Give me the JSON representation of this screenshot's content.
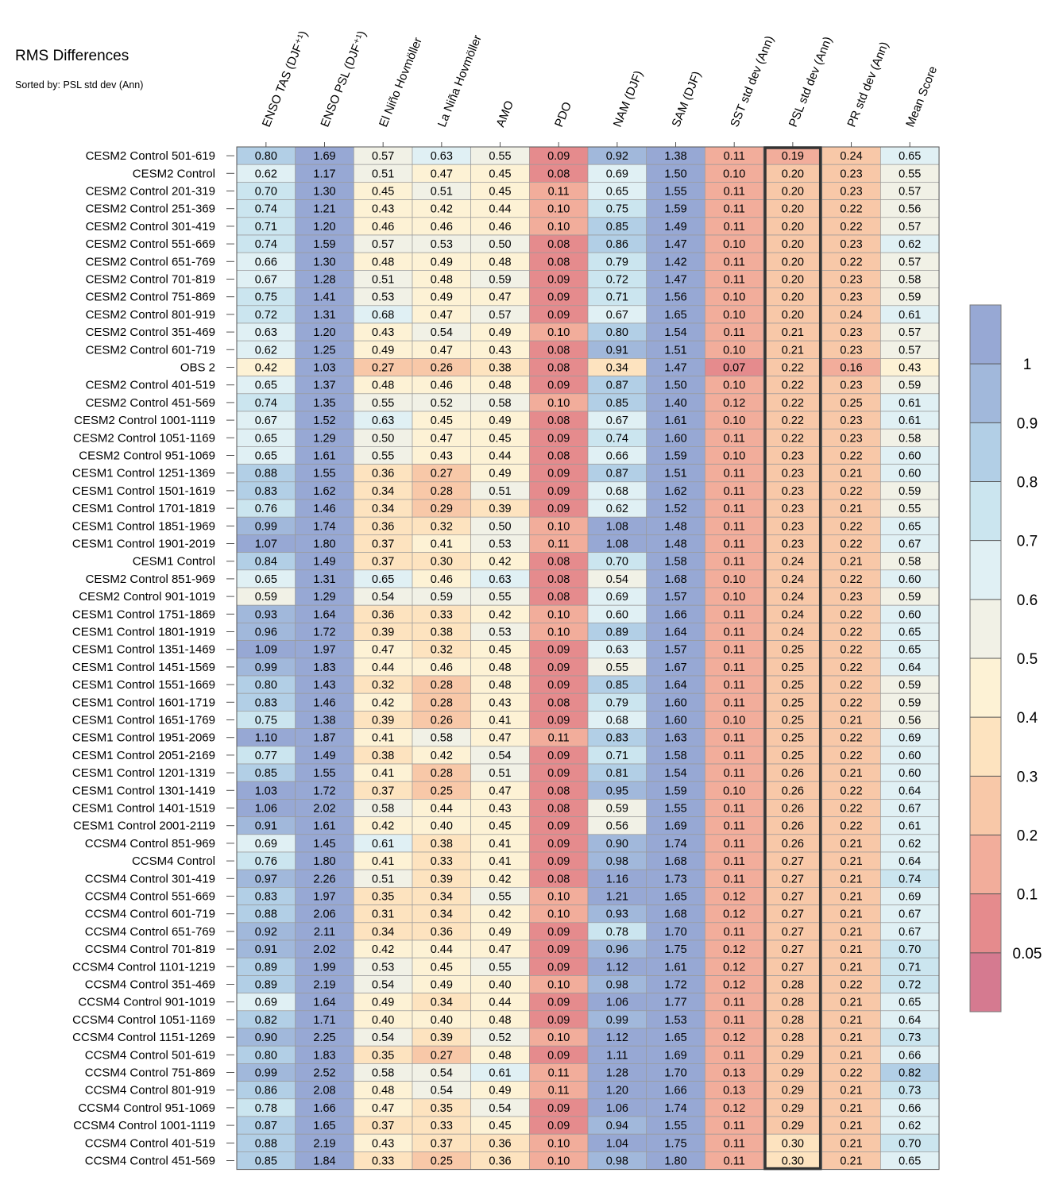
{
  "chart_data": {
    "type": "heatmap",
    "title": "RMS Differences",
    "subtitle": "Sorted by: PSL std dev (Ann)",
    "highlighted_column": "PSL std dev (Ann)",
    "columns": [
      "ENSO TAS (DJF⁺¹)",
      "ENSO PSL (DJF⁺¹)",
      "El Niño Hovmöller",
      "La Niña Hovmöller",
      "AMO",
      "PDO",
      "NAM (DJF)",
      "SAM (DJF)",
      "SST std dev (Ann)",
      "PSL std dev (Ann)",
      "PR std dev (Ann)",
      "Mean Score"
    ],
    "rows": [
      "CESM2 Control 501-619",
      "CESM2 Control",
      "CESM2 Control 201-319",
      "CESM2 Control 251-369",
      "CESM2 Control 301-419",
      "CESM2 Control 551-669",
      "CESM2 Control 651-769",
      "CESM2 Control 701-819",
      "CESM2 Control 751-869",
      "CESM2 Control 801-919",
      "CESM2 Control 351-469",
      "CESM2 Control 601-719",
      "OBS 2",
      "CESM2 Control 401-519",
      "CESM2 Control 451-569",
      "CESM2 Control 1001-1119",
      "CESM2 Control 1051-1169",
      "CESM2 Control 951-1069",
      "CESM1 Control 1251-1369",
      "CESM1 Control 1501-1619",
      "CESM1 Control 1701-1819",
      "CESM1 Control 1851-1969",
      "CESM1 Control 1901-2019",
      "CESM1 Control",
      "CESM2 Control 851-969",
      "CESM2 Control 901-1019",
      "CESM1 Control 1751-1869",
      "CESM1 Control 1801-1919",
      "CESM1 Control 1351-1469",
      "CESM1 Control 1451-1569",
      "CESM1 Control 1551-1669",
      "CESM1 Control 1601-1719",
      "CESM1 Control 1651-1769",
      "CESM1 Control 1951-2069",
      "CESM1 Control 2051-2169",
      "CESM1 Control 1201-1319",
      "CESM1 Control 1301-1419",
      "CESM1 Control 1401-1519",
      "CESM1 Control 2001-2119",
      "CCSM4 Control 851-969",
      "CCSM4 Control",
      "CCSM4 Control 301-419",
      "CCSM4 Control 551-669",
      "CCSM4 Control 601-719",
      "CCSM4 Control 651-769",
      "CCSM4 Control 701-819",
      "CCSM4 Control 1101-1219",
      "CCSM4 Control 351-469",
      "CCSM4 Control 901-1019",
      "CCSM4 Control 1051-1169",
      "CCSM4 Control 1151-1269",
      "CCSM4 Control 501-619",
      "CCSM4 Control 751-869",
      "CCSM4 Control 801-919",
      "CCSM4 Control 951-1069",
      "CCSM4 Control 1001-1119",
      "CCSM4 Control 401-519",
      "CCSM4 Control 451-569"
    ],
    "values": [
      [
        "0.80",
        "1.69",
        "0.57",
        "0.63",
        "0.55",
        "0.09",
        "0.92",
        "1.38",
        "0.11",
        "0.19",
        "0.24",
        "0.65"
      ],
      [
        "0.62",
        "1.17",
        "0.51",
        "0.47",
        "0.45",
        "0.08",
        "0.69",
        "1.50",
        "0.10",
        "0.20",
        "0.23",
        "0.55"
      ],
      [
        "0.70",
        "1.30",
        "0.45",
        "0.51",
        "0.45",
        "0.11",
        "0.65",
        "1.55",
        "0.11",
        "0.20",
        "0.23",
        "0.57"
      ],
      [
        "0.74",
        "1.21",
        "0.43",
        "0.42",
        "0.44",
        "0.10",
        "0.75",
        "1.59",
        "0.11",
        "0.20",
        "0.22",
        "0.56"
      ],
      [
        "0.71",
        "1.20",
        "0.46",
        "0.46",
        "0.46",
        "0.10",
        "0.85",
        "1.49",
        "0.11",
        "0.20",
        "0.22",
        "0.57"
      ],
      [
        "0.74",
        "1.59",
        "0.57",
        "0.53",
        "0.50",
        "0.08",
        "0.86",
        "1.47",
        "0.10",
        "0.20",
        "0.23",
        "0.62"
      ],
      [
        "0.66",
        "1.30",
        "0.48",
        "0.49",
        "0.48",
        "0.08",
        "0.79",
        "1.42",
        "0.11",
        "0.20",
        "0.22",
        "0.57"
      ],
      [
        "0.67",
        "1.28",
        "0.51",
        "0.48",
        "0.59",
        "0.09",
        "0.72",
        "1.47",
        "0.11",
        "0.20",
        "0.23",
        "0.58"
      ],
      [
        "0.75",
        "1.41",
        "0.53",
        "0.49",
        "0.47",
        "0.09",
        "0.71",
        "1.56",
        "0.10",
        "0.20",
        "0.23",
        "0.59"
      ],
      [
        "0.72",
        "1.31",
        "0.68",
        "0.47",
        "0.57",
        "0.09",
        "0.67",
        "1.65",
        "0.10",
        "0.20",
        "0.24",
        "0.61"
      ],
      [
        "0.63",
        "1.20",
        "0.43",
        "0.54",
        "0.49",
        "0.10",
        "0.80",
        "1.54",
        "0.11",
        "0.21",
        "0.23",
        "0.57"
      ],
      [
        "0.62",
        "1.25",
        "0.49",
        "0.47",
        "0.43",
        "0.08",
        "0.91",
        "1.51",
        "0.10",
        "0.21",
        "0.23",
        "0.57"
      ],
      [
        "0.42",
        "1.03",
        "0.27",
        "0.26",
        "0.38",
        "0.08",
        "0.34",
        "1.47",
        "0.07",
        "0.22",
        "0.16",
        "0.43"
      ],
      [
        "0.65",
        "1.37",
        "0.48",
        "0.46",
        "0.48",
        "0.09",
        "0.87",
        "1.50",
        "0.10",
        "0.22",
        "0.23",
        "0.59"
      ],
      [
        "0.74",
        "1.35",
        "0.55",
        "0.52",
        "0.58",
        "0.10",
        "0.85",
        "1.40",
        "0.12",
        "0.22",
        "0.25",
        "0.61"
      ],
      [
        "0.67",
        "1.52",
        "0.63",
        "0.45",
        "0.49",
        "0.08",
        "0.67",
        "1.61",
        "0.10",
        "0.22",
        "0.23",
        "0.61"
      ],
      [
        "0.65",
        "1.29",
        "0.50",
        "0.47",
        "0.45",
        "0.09",
        "0.74",
        "1.60",
        "0.11",
        "0.22",
        "0.23",
        "0.58"
      ],
      [
        "0.65",
        "1.61",
        "0.55",
        "0.43",
        "0.44",
        "0.08",
        "0.66",
        "1.59",
        "0.10",
        "0.23",
        "0.22",
        "0.60"
      ],
      [
        "0.88",
        "1.55",
        "0.36",
        "0.27",
        "0.49",
        "0.09",
        "0.87",
        "1.51",
        "0.11",
        "0.23",
        "0.21",
        "0.60"
      ],
      [
        "0.83",
        "1.62",
        "0.34",
        "0.28",
        "0.51",
        "0.09",
        "0.68",
        "1.62",
        "0.11",
        "0.23",
        "0.22",
        "0.59"
      ],
      [
        "0.76",
        "1.46",
        "0.34",
        "0.29",
        "0.39",
        "0.09",
        "0.62",
        "1.52",
        "0.11",
        "0.23",
        "0.21",
        "0.55"
      ],
      [
        "0.99",
        "1.74",
        "0.36",
        "0.32",
        "0.50",
        "0.10",
        "1.08",
        "1.48",
        "0.11",
        "0.23",
        "0.22",
        "0.65"
      ],
      [
        "1.07",
        "1.80",
        "0.37",
        "0.41",
        "0.53",
        "0.11",
        "1.08",
        "1.48",
        "0.11",
        "0.23",
        "0.22",
        "0.67"
      ],
      [
        "0.84",
        "1.49",
        "0.37",
        "0.30",
        "0.42",
        "0.08",
        "0.70",
        "1.58",
        "0.11",
        "0.24",
        "0.21",
        "0.58"
      ],
      [
        "0.65",
        "1.31",
        "0.65",
        "0.46",
        "0.63",
        "0.08",
        "0.54",
        "1.68",
        "0.10",
        "0.24",
        "0.22",
        "0.60"
      ],
      [
        "0.59",
        "1.29",
        "0.54",
        "0.59",
        "0.55",
        "0.08",
        "0.69",
        "1.57",
        "0.10",
        "0.24",
        "0.23",
        "0.59"
      ],
      [
        "0.93",
        "1.64",
        "0.36",
        "0.33",
        "0.42",
        "0.10",
        "0.60",
        "1.66",
        "0.11",
        "0.24",
        "0.22",
        "0.60"
      ],
      [
        "0.96",
        "1.72",
        "0.39",
        "0.38",
        "0.53",
        "0.10",
        "0.89",
        "1.64",
        "0.11",
        "0.24",
        "0.22",
        "0.65"
      ],
      [
        "1.09",
        "1.97",
        "0.47",
        "0.32",
        "0.45",
        "0.09",
        "0.63",
        "1.57",
        "0.11",
        "0.25",
        "0.22",
        "0.65"
      ],
      [
        "0.99",
        "1.83",
        "0.44",
        "0.46",
        "0.48",
        "0.09",
        "0.55",
        "1.67",
        "0.11",
        "0.25",
        "0.22",
        "0.64"
      ],
      [
        "0.80",
        "1.43",
        "0.32",
        "0.28",
        "0.48",
        "0.09",
        "0.85",
        "1.64",
        "0.11",
        "0.25",
        "0.22",
        "0.59"
      ],
      [
        "0.83",
        "1.46",
        "0.42",
        "0.28",
        "0.43",
        "0.08",
        "0.79",
        "1.60",
        "0.11",
        "0.25",
        "0.22",
        "0.59"
      ],
      [
        "0.75",
        "1.38",
        "0.39",
        "0.26",
        "0.41",
        "0.09",
        "0.68",
        "1.60",
        "0.10",
        "0.25",
        "0.21",
        "0.56"
      ],
      [
        "1.10",
        "1.87",
        "0.41",
        "0.58",
        "0.47",
        "0.11",
        "0.83",
        "1.63",
        "0.11",
        "0.25",
        "0.22",
        "0.69"
      ],
      [
        "0.77",
        "1.49",
        "0.38",
        "0.42",
        "0.54",
        "0.09",
        "0.71",
        "1.58",
        "0.11",
        "0.25",
        "0.22",
        "0.60"
      ],
      [
        "0.85",
        "1.55",
        "0.41",
        "0.28",
        "0.51",
        "0.09",
        "0.81",
        "1.54",
        "0.11",
        "0.26",
        "0.21",
        "0.60"
      ],
      [
        "1.03",
        "1.72",
        "0.37",
        "0.25",
        "0.47",
        "0.08",
        "0.95",
        "1.59",
        "0.10",
        "0.26",
        "0.22",
        "0.64"
      ],
      [
        "1.06",
        "2.02",
        "0.58",
        "0.44",
        "0.43",
        "0.08",
        "0.59",
        "1.55",
        "0.11",
        "0.26",
        "0.22",
        "0.67"
      ],
      [
        "0.91",
        "1.61",
        "0.42",
        "0.40",
        "0.45",
        "0.09",
        "0.56",
        "1.69",
        "0.11",
        "0.26",
        "0.22",
        "0.61"
      ],
      [
        "0.69",
        "1.45",
        "0.61",
        "0.38",
        "0.41",
        "0.09",
        "0.90",
        "1.74",
        "0.11",
        "0.26",
        "0.21",
        "0.62"
      ],
      [
        "0.76",
        "1.80",
        "0.41",
        "0.33",
        "0.41",
        "0.09",
        "0.98",
        "1.68",
        "0.11",
        "0.27",
        "0.21",
        "0.64"
      ],
      [
        "0.97",
        "2.26",
        "0.51",
        "0.39",
        "0.42",
        "0.08",
        "1.16",
        "1.73",
        "0.11",
        "0.27",
        "0.21",
        "0.74"
      ],
      [
        "0.83",
        "1.97",
        "0.35",
        "0.34",
        "0.55",
        "0.10",
        "1.21",
        "1.65",
        "0.12",
        "0.27",
        "0.21",
        "0.69"
      ],
      [
        "0.88",
        "2.06",
        "0.31",
        "0.34",
        "0.42",
        "0.10",
        "0.93",
        "1.68",
        "0.12",
        "0.27",
        "0.21",
        "0.67"
      ],
      [
        "0.92",
        "2.11",
        "0.34",
        "0.36",
        "0.49",
        "0.09",
        "0.78",
        "1.70",
        "0.11",
        "0.27",
        "0.21",
        "0.67"
      ],
      [
        "0.91",
        "2.02",
        "0.42",
        "0.44",
        "0.47",
        "0.09",
        "0.96",
        "1.75",
        "0.12",
        "0.27",
        "0.21",
        "0.70"
      ],
      [
        "0.89",
        "1.99",
        "0.53",
        "0.45",
        "0.55",
        "0.09",
        "1.12",
        "1.61",
        "0.12",
        "0.27",
        "0.21",
        "0.71"
      ],
      [
        "0.89",
        "2.19",
        "0.54",
        "0.49",
        "0.40",
        "0.10",
        "0.98",
        "1.72",
        "0.12",
        "0.28",
        "0.22",
        "0.72"
      ],
      [
        "0.69",
        "1.64",
        "0.49",
        "0.34",
        "0.44",
        "0.09",
        "1.06",
        "1.77",
        "0.11",
        "0.28",
        "0.21",
        "0.65"
      ],
      [
        "0.82",
        "1.71",
        "0.40",
        "0.40",
        "0.48",
        "0.09",
        "0.99",
        "1.53",
        "0.11",
        "0.28",
        "0.21",
        "0.64"
      ],
      [
        "0.90",
        "2.25",
        "0.54",
        "0.39",
        "0.52",
        "0.10",
        "1.12",
        "1.65",
        "0.12",
        "0.28",
        "0.21",
        "0.73"
      ],
      [
        "0.80",
        "1.83",
        "0.35",
        "0.27",
        "0.48",
        "0.09",
        "1.11",
        "1.69",
        "0.11",
        "0.29",
        "0.21",
        "0.66"
      ],
      [
        "0.99",
        "2.52",
        "0.58",
        "0.54",
        "0.61",
        "0.11",
        "1.28",
        "1.70",
        "0.13",
        "0.29",
        "0.22",
        "0.82"
      ],
      [
        "0.86",
        "2.08",
        "0.48",
        "0.54",
        "0.49",
        "0.11",
        "1.20",
        "1.66",
        "0.13",
        "0.29",
        "0.21",
        "0.73"
      ],
      [
        "0.78",
        "1.66",
        "0.47",
        "0.35",
        "0.54",
        "0.09",
        "1.06",
        "1.74",
        "0.12",
        "0.29",
        "0.21",
        "0.66"
      ],
      [
        "0.87",
        "1.65",
        "0.37",
        "0.33",
        "0.45",
        "0.09",
        "0.94",
        "1.55",
        "0.11",
        "0.29",
        "0.21",
        "0.62"
      ],
      [
        "0.88",
        "2.19",
        "0.43",
        "0.37",
        "0.36",
        "0.10",
        "1.04",
        "1.75",
        "0.11",
        "0.30",
        "0.21",
        "0.70"
      ],
      [
        "0.85",
        "1.84",
        "0.33",
        "0.25",
        "0.36",
        "0.10",
        "0.98",
        "1.80",
        "0.11",
        "0.30",
        "0.21",
        "0.65"
      ]
    ],
    "colorbar": {
      "levels": [
        0.05,
        0.1,
        0.2,
        0.3,
        0.4,
        0.5,
        0.6,
        0.7,
        0.8,
        0.9,
        1
      ],
      "tick_labels": [
        "0.05",
        "0.1",
        "0.2",
        "0.3",
        "0.4",
        "0.5",
        "0.6",
        "0.7",
        "0.8",
        "0.9",
        "1"
      ],
      "colors": [
        "#d57a90",
        "#e58b8d",
        "#f2ad9b",
        "#f8c8a8",
        "#fde3bf",
        "#fdf2d5",
        "#f1f1e6",
        "#e0f0f4",
        "#cbe5ef",
        "#b2cfe6",
        "#a1b8db",
        "#97a8d4"
      ]
    }
  }
}
